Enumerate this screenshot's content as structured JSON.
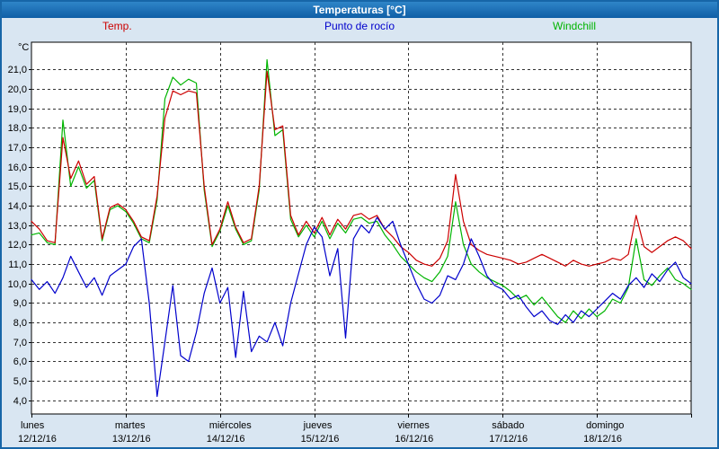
{
  "window": {
    "title": "Temperaturas [°C]"
  },
  "legend": [
    {
      "label": "Temp.",
      "color": "#cc0000"
    },
    {
      "label": "Punto de rocío",
      "color": "#0000cc"
    },
    {
      "label": "Windchill",
      "color": "#00b400"
    }
  ],
  "chart_data": {
    "type": "line",
    "title": "Temperaturas [°C]",
    "ylabel": "°C",
    "ylim": [
      3.3,
      22.4
    ],
    "grid": true,
    "x_hours_step": 2,
    "y_ticks": [
      {
        "value": 4,
        "label": "4,0"
      },
      {
        "value": 5,
        "label": "5,0"
      },
      {
        "value": 6,
        "label": "6,0"
      },
      {
        "value": 7,
        "label": "7,0"
      },
      {
        "value": 8,
        "label": "8,0"
      },
      {
        "value": 9,
        "label": "9,0"
      },
      {
        "value": 10,
        "label": "10,0"
      },
      {
        "value": 11,
        "label": "11,0"
      },
      {
        "value": 12,
        "label": "12,0"
      },
      {
        "value": 13,
        "label": "13,0"
      },
      {
        "value": 14,
        "label": "14,0"
      },
      {
        "value": 15,
        "label": "15,0"
      },
      {
        "value": 16,
        "label": "16,0"
      },
      {
        "value": 17,
        "label": "17,0"
      },
      {
        "value": 18,
        "label": "18,0"
      },
      {
        "value": 19,
        "label": "19,0"
      },
      {
        "value": 20,
        "label": "20,0"
      },
      {
        "value": 21,
        "label": "21,0"
      }
    ],
    "x_days": [
      {
        "name": "lunes",
        "date": "12/12/16"
      },
      {
        "name": "martes",
        "date": "13/12/16"
      },
      {
        "name": "miércoles",
        "date": "14/12/16"
      },
      {
        "name": "jueves",
        "date": "15/12/16"
      },
      {
        "name": "viernes",
        "date": "16/12/16"
      },
      {
        "name": "sábado",
        "date": "17/12/16"
      },
      {
        "name": "domingo",
        "date": "18/12/16"
      }
    ],
    "series": [
      {
        "name": "Temp.",
        "color": "#cc0000",
        "values": [
          13.2,
          12.8,
          12.2,
          12.1,
          17.5,
          15.4,
          16.3,
          15.1,
          15.5,
          12.3,
          13.9,
          14.1,
          13.8,
          13.2,
          12.4,
          12.2,
          14.5,
          18.5,
          19.9,
          19.7,
          19.9,
          19.8,
          15.0,
          12.0,
          12.8,
          14.2,
          12.9,
          12.1,
          12.3,
          15.0,
          20.9,
          17.9,
          18.1,
          13.5,
          12.5,
          13.2,
          12.6,
          13.4,
          12.5,
          13.3,
          12.8,
          13.5,
          13.6,
          13.3,
          13.5,
          12.8,
          12.4,
          11.9,
          11.6,
          11.2,
          11.0,
          10.9,
          11.3,
          12.2,
          15.6,
          13.2,
          12.0,
          11.7,
          11.5,
          11.4,
          11.3,
          11.2,
          11.0,
          11.1,
          11.3,
          11.5,
          11.3,
          11.1,
          10.9,
          11.2,
          11.0,
          10.9,
          11.0,
          11.1,
          11.3,
          11.2,
          11.5,
          13.5,
          11.9,
          11.6,
          11.9,
          12.2,
          12.4,
          12.2,
          11.8
        ]
      },
      {
        "name": "Punto de rocío",
        "color": "#0000cc",
        "values": [
          10.2,
          9.7,
          10.1,
          9.5,
          10.3,
          11.4,
          10.6,
          9.8,
          10.3,
          9.4,
          10.4,
          10.7,
          11.0,
          11.9,
          12.3,
          9.0,
          4.2,
          7.0,
          9.9,
          6.3,
          6.0,
          7.5,
          9.5,
          10.8,
          9.0,
          9.8,
          6.2,
          9.6,
          6.5,
          7.3,
          7.0,
          8.0,
          6.8,
          9.0,
          10.5,
          12.0,
          12.9,
          12.4,
          10.4,
          11.8,
          7.2,
          12.3,
          13.0,
          12.6,
          13.4,
          12.8,
          13.2,
          12.0,
          11.0,
          10.0,
          9.2,
          9.0,
          9.4,
          10.4,
          10.2,
          11.0,
          12.3,
          11.4,
          10.4,
          9.9,
          9.7,
          9.2,
          9.4,
          8.8,
          8.3,
          8.6,
          8.1,
          7.9,
          8.4,
          8.0,
          8.6,
          8.3,
          8.7,
          9.1,
          9.5,
          9.2,
          9.9,
          10.3,
          9.8,
          10.5,
          10.1,
          10.7,
          11.1,
          10.3,
          10.0
        ]
      },
      {
        "name": "Windchill",
        "color": "#00b400",
        "values": [
          12.5,
          12.6,
          12.1,
          12.0,
          18.4,
          15.0,
          16.0,
          14.9,
          15.3,
          12.2,
          13.8,
          14.0,
          13.7,
          13.1,
          12.3,
          12.1,
          14.3,
          19.5,
          20.6,
          20.2,
          20.5,
          20.3,
          14.8,
          11.9,
          12.7,
          14.0,
          12.8,
          12.0,
          12.2,
          14.8,
          21.5,
          17.6,
          17.9,
          13.3,
          12.4,
          13.0,
          12.4,
          13.2,
          12.3,
          13.1,
          12.6,
          13.3,
          13.4,
          13.1,
          13.2,
          12.5,
          12.0,
          11.4,
          11.0,
          10.6,
          10.3,
          10.1,
          10.6,
          11.4,
          14.2,
          12.0,
          11.0,
          10.6,
          10.3,
          10.1,
          9.9,
          9.6,
          9.2,
          9.4,
          8.9,
          9.3,
          8.8,
          8.3,
          8.0,
          8.6,
          8.2,
          8.7,
          8.3,
          8.6,
          9.2,
          9.0,
          9.8,
          12.3,
          10.2,
          9.9,
          10.4,
          10.8,
          10.2,
          10.0,
          9.7
        ]
      }
    ]
  }
}
